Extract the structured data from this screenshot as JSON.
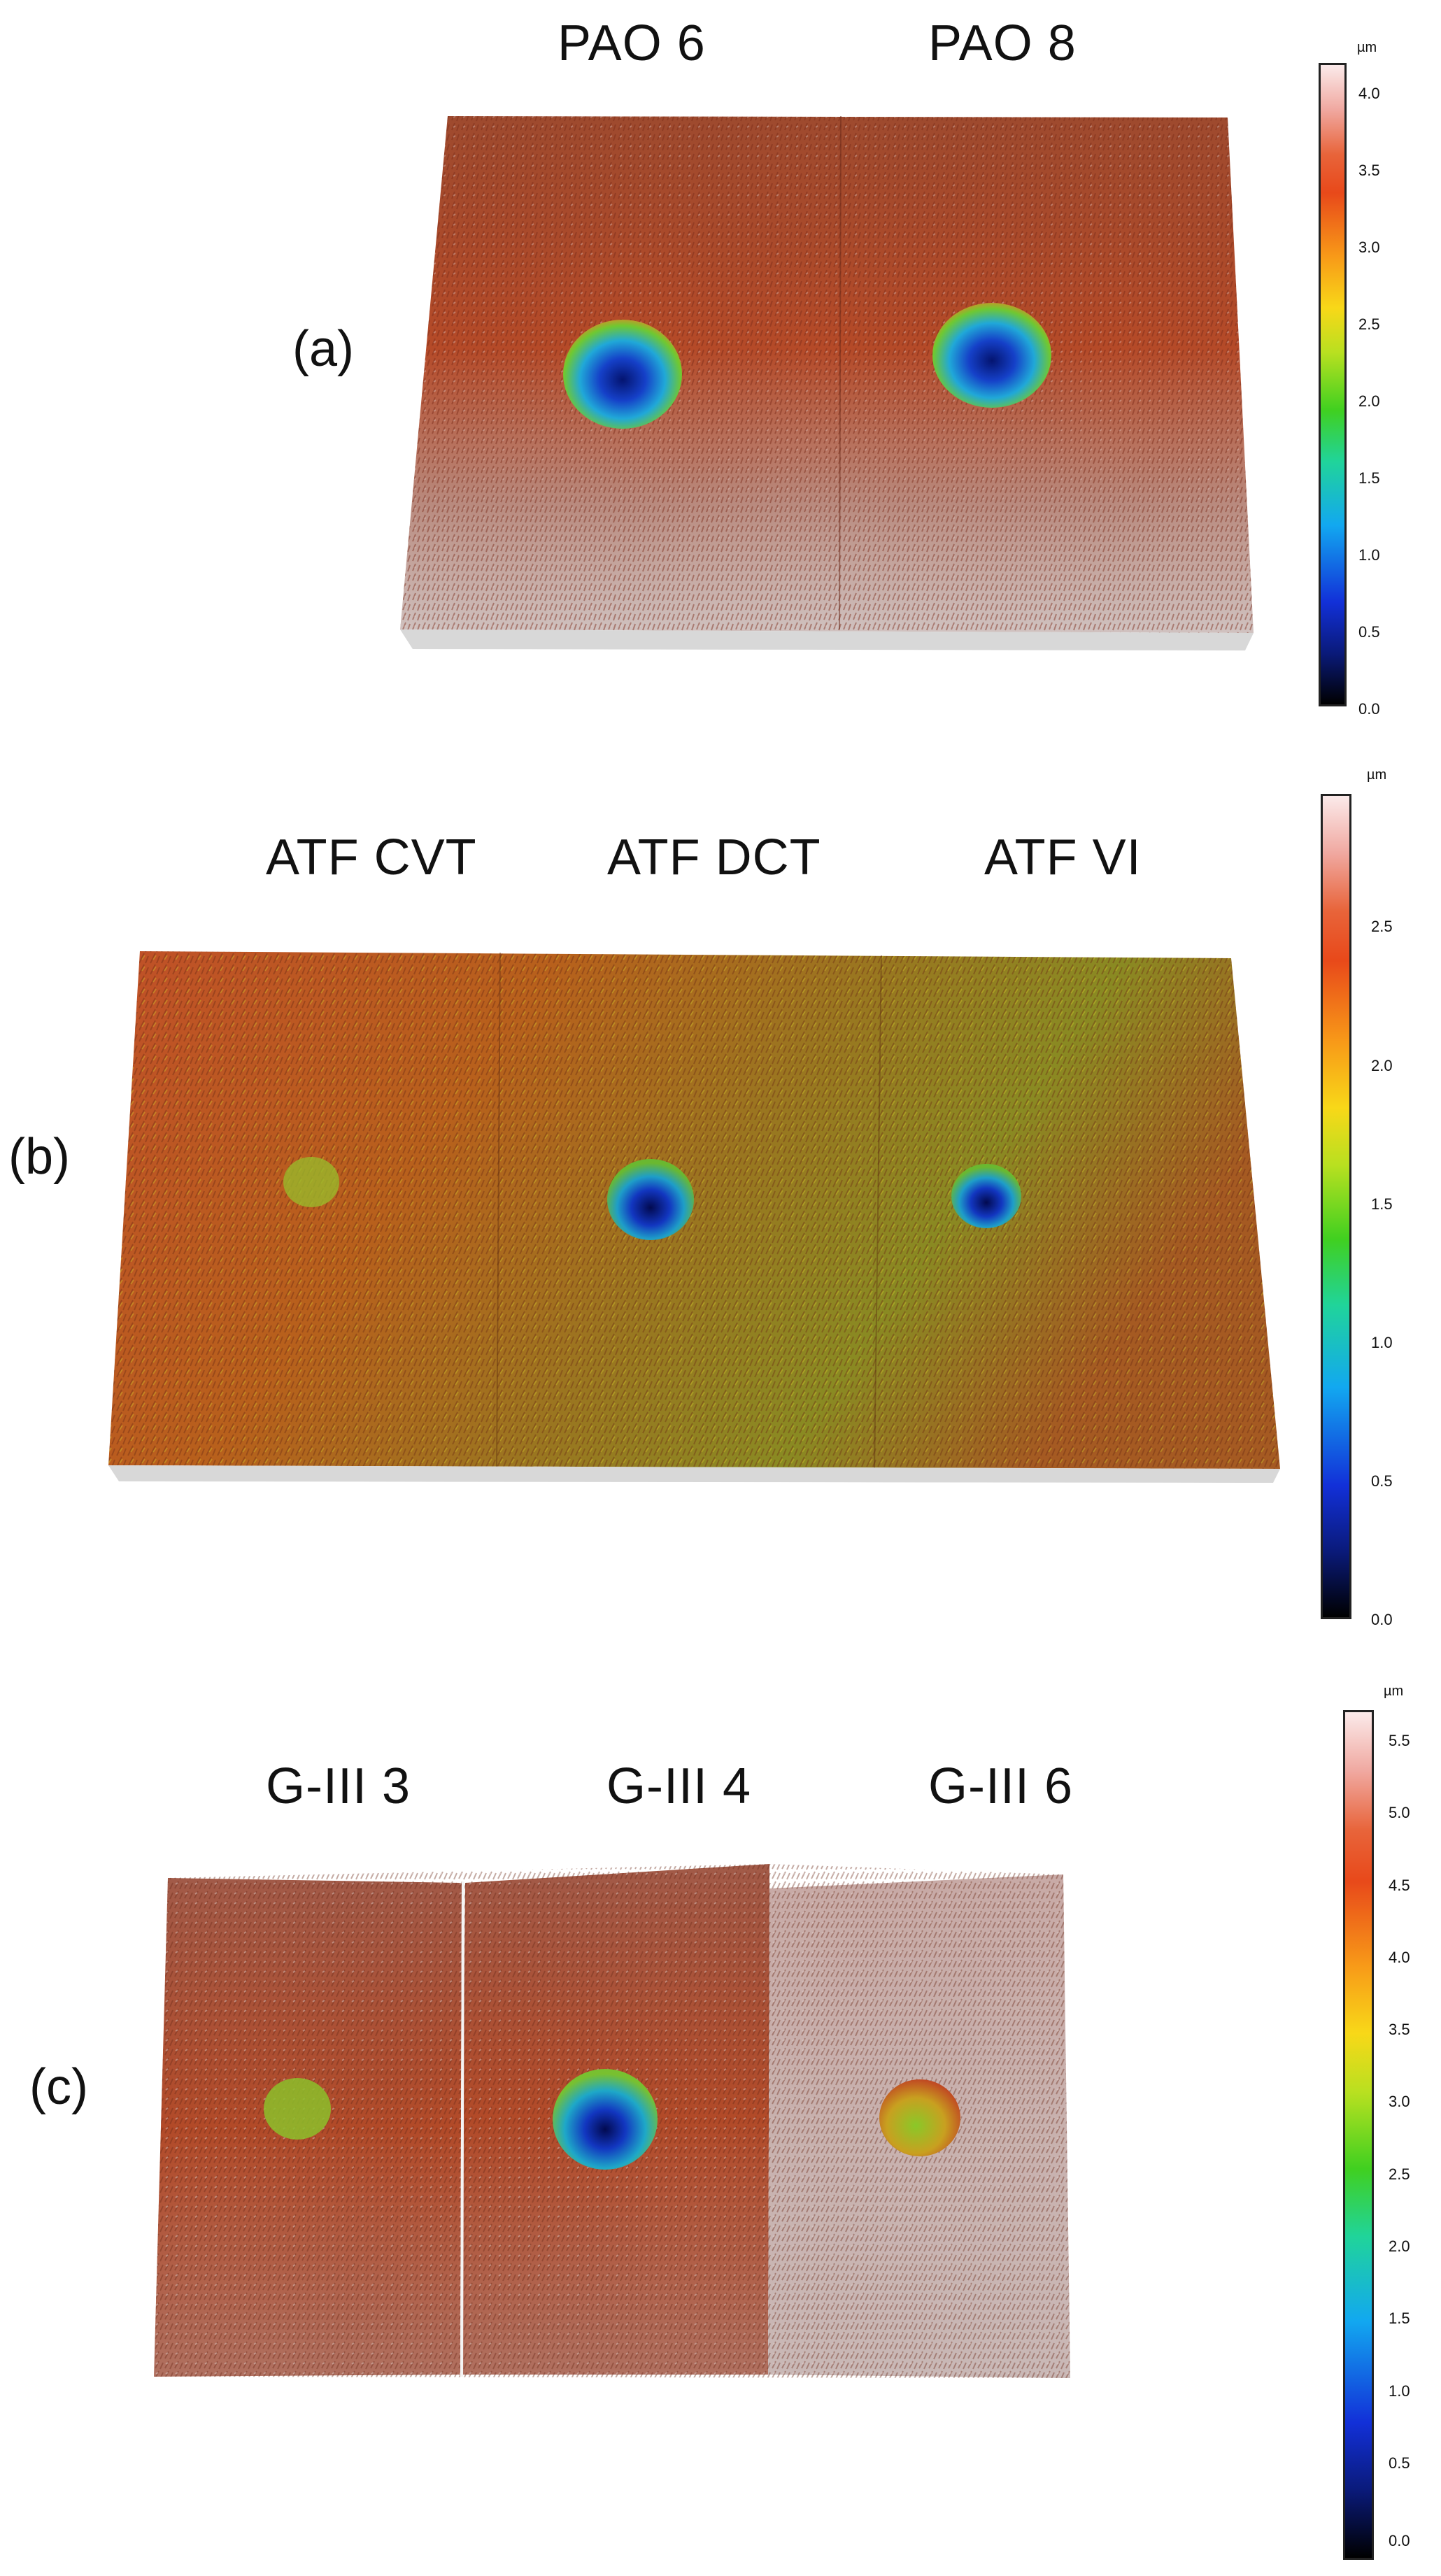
{
  "panels": [
    {
      "letter": "(a)",
      "samples": [
        "PAO 6",
        "PAO 8"
      ],
      "colorbar": {
        "unit": "µm",
        "ticks": [
          "4.0",
          "3.5",
          "3.0",
          "2.5",
          "2.0",
          "1.5",
          "1.0",
          "0.5",
          "0.0"
        ]
      }
    },
    {
      "letter": "(b)",
      "samples": [
        "ATF CVT",
        "ATF DCT",
        "ATF VI"
      ],
      "colorbar": {
        "unit": "µm",
        "ticks": [
          "2.5",
          "2.0",
          "1.5",
          "1.0",
          "0.5",
          "0.0"
        ]
      }
    },
    {
      "letter": "(c)",
      "samples": [
        "G-III 3",
        "G-III 4",
        "G-III 6"
      ],
      "colorbar": {
        "unit": "µm",
        "ticks": [
          "5.5",
          "5.0",
          "4.5",
          "4.0",
          "3.5",
          "3.0",
          "2.5",
          "2.0",
          "1.5",
          "1.0",
          "0.5",
          "0.0"
        ]
      }
    }
  ],
  "colors": {
    "surface_base": "#b4482a",
    "surface_highlight": "#c9b3b0",
    "surface_green": "#8a9a26",
    "crater_deep": "#041a8a",
    "crater_mid": "#1ea0e0",
    "crater_rim": "#7fd030"
  }
}
